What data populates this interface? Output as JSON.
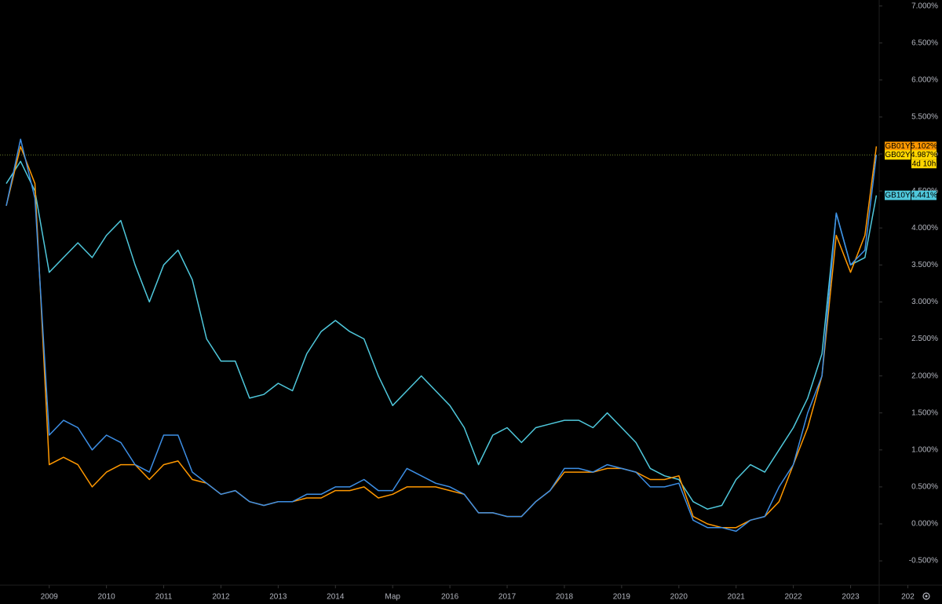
{
  "chart_data": {
    "type": "line",
    "x": [
      2008.25,
      2008.5,
      2008.75,
      2009,
      2009.25,
      2009.5,
      2009.75,
      2010,
      2010.25,
      2010.5,
      2010.75,
      2011,
      2011.25,
      2011.5,
      2011.75,
      2012,
      2012.25,
      2012.5,
      2012.75,
      2013,
      2013.25,
      2013.5,
      2013.75,
      2014,
      2014.25,
      2014.5,
      2014.75,
      2015,
      2015.25,
      2015.5,
      2015.75,
      2016,
      2016.25,
      2016.5,
      2016.75,
      2017,
      2017.25,
      2017.5,
      2017.75,
      2018,
      2018.25,
      2018.5,
      2018.75,
      2019,
      2019.25,
      2019.5,
      2019.75,
      2020,
      2020.25,
      2020.5,
      2020.75,
      2021,
      2021.25,
      2021.5,
      2021.75,
      2022,
      2022.25,
      2022.5,
      2022.75,
      2023,
      2023.25,
      2023.45
    ],
    "series": [
      {
        "name": "GB01Y",
        "color": "#ff9800",
        "label_color": "#ff9800",
        "values": [
          4.3,
          5.1,
          4.6,
          0.8,
          0.9,
          0.8,
          0.5,
          0.7,
          0.8,
          0.8,
          0.6,
          0.8,
          0.85,
          0.6,
          0.55,
          0.4,
          0.45,
          0.3,
          0.25,
          0.3,
          0.3,
          0.35,
          0.35,
          0.45,
          0.45,
          0.5,
          0.35,
          0.4,
          0.5,
          0.5,
          0.5,
          0.45,
          0.4,
          0.15,
          0.15,
          0.1,
          0.1,
          0.3,
          0.45,
          0.7,
          0.7,
          0.7,
          0.75,
          0.75,
          0.7,
          0.6,
          0.6,
          0.65,
          0.1,
          0.0,
          -0.05,
          -0.05,
          0.05,
          0.1,
          0.3,
          0.8,
          1.3,
          2.0,
          3.9,
          3.4,
          3.9,
          5.102
        ],
        "value_labels": [
          null,
          null,
          null,
          null,
          null,
          null,
          null,
          null,
          null,
          null,
          null,
          null,
          null,
          null,
          null,
          null,
          null,
          null,
          null,
          null,
          null,
          null,
          null,
          null,
          null,
          null,
          null,
          null,
          null,
          null,
          null,
          null,
          null,
          null,
          null,
          null,
          null,
          null,
          null,
          null,
          null,
          null,
          null,
          null,
          null,
          null,
          null,
          null,
          null,
          null,
          null,
          null,
          null,
          null,
          null,
          null,
          null,
          null,
          null,
          null,
          null,
          "5.102%"
        ]
      },
      {
        "name": "GB02Y",
        "color": "#3d8fe6",
        "label_color": "#ffd600",
        "values": [
          4.3,
          5.2,
          4.4,
          1.2,
          1.4,
          1.3,
          1.0,
          1.2,
          1.1,
          0.8,
          0.7,
          1.2,
          1.2,
          0.7,
          0.55,
          0.4,
          0.45,
          0.3,
          0.25,
          0.3,
          0.3,
          0.4,
          0.4,
          0.5,
          0.5,
          0.6,
          0.45,
          0.45,
          0.75,
          0.65,
          0.55,
          0.5,
          0.4,
          0.15,
          0.15,
          0.1,
          0.1,
          0.3,
          0.45,
          0.75,
          0.75,
          0.7,
          0.8,
          0.75,
          0.7,
          0.5,
          0.5,
          0.55,
          0.05,
          -0.05,
          -0.05,
          -0.1,
          0.05,
          0.1,
          0.5,
          0.8,
          1.5,
          2.0,
          4.2,
          3.5,
          3.7,
          4.987
        ],
        "value_labels": [
          null,
          null,
          null,
          null,
          null,
          null,
          null,
          null,
          null,
          null,
          null,
          null,
          null,
          null,
          null,
          null,
          null,
          null,
          null,
          null,
          null,
          null,
          null,
          null,
          null,
          null,
          null,
          null,
          null,
          null,
          null,
          null,
          null,
          null,
          null,
          null,
          null,
          null,
          null,
          null,
          null,
          null,
          null,
          null,
          null,
          null,
          null,
          null,
          null,
          null,
          null,
          null,
          null,
          null,
          null,
          null,
          null,
          null,
          null,
          null,
          null,
          "4.987%"
        ],
        "countdown": "4d 10h"
      },
      {
        "name": "GB10Y",
        "color": "#4fc8dc",
        "label_color": "#4fc8dc",
        "values": [
          4.6,
          4.9,
          4.5,
          3.4,
          3.6,
          3.8,
          3.6,
          3.9,
          4.1,
          3.5,
          3.0,
          3.5,
          3.7,
          3.3,
          2.5,
          2.2,
          2.2,
          1.7,
          1.75,
          1.9,
          1.8,
          2.3,
          2.6,
          2.75,
          2.6,
          2.5,
          2.0,
          1.6,
          1.8,
          2.0,
          1.8,
          1.6,
          1.3,
          0.8,
          1.2,
          1.3,
          1.1,
          1.3,
          1.35,
          1.4,
          1.4,
          1.3,
          1.5,
          1.3,
          1.1,
          0.75,
          0.65,
          0.6,
          0.3,
          0.2,
          0.25,
          0.6,
          0.8,
          0.7,
          1.0,
          1.3,
          1.7,
          2.3,
          4.2,
          3.5,
          3.6,
          4.441
        ],
        "value_labels": [
          null,
          null,
          null,
          null,
          null,
          null,
          null,
          null,
          null,
          null,
          null,
          null,
          null,
          null,
          null,
          null,
          null,
          null,
          null,
          null,
          null,
          null,
          null,
          null,
          null,
          null,
          null,
          null,
          null,
          null,
          null,
          null,
          null,
          null,
          null,
          null,
          null,
          null,
          null,
          null,
          null,
          null,
          null,
          null,
          null,
          null,
          null,
          null,
          null,
          null,
          null,
          null,
          null,
          null,
          null,
          null,
          null,
          null,
          null,
          null,
          null,
          "4.441%"
        ]
      }
    ],
    "xlim": [
      2008.14,
      2023.5
    ],
    "xticks": [
      2009,
      2010,
      2011,
      2012,
      2013,
      2014,
      {
        "value": 2015,
        "label": "Мар"
      },
      2016,
      2017,
      2018,
      2019,
      2020,
      2021,
      2022,
      2023,
      {
        "value": 2024,
        "label": "202"
      }
    ],
    "ylim": [
      -0.828,
      7.081
    ],
    "yticks": [
      {
        "value": -0.5,
        "label": "-0.500%"
      },
      {
        "value": 0,
        "label": "0.000%"
      },
      {
        "value": 0.5,
        "label": "0.500%"
      },
      {
        "value": 1,
        "label": "1.000%"
      },
      {
        "value": 1.5,
        "label": "1.500%"
      },
      {
        "value": 2,
        "label": "2.000%"
      },
      {
        "value": 2.5,
        "label": "2.500%"
      },
      {
        "value": 3,
        "label": "3.000%"
      },
      {
        "value": 3.5,
        "label": "3.500%"
      },
      {
        "value": 4,
        "label": "4.000%"
      },
      {
        "value": 4.5,
        "label": "4.500%"
      },
      {
        "value": 5,
        "label": "5.000%"
      },
      {
        "value": 5.5,
        "label": "5.500%"
      },
      {
        "value": 6,
        "label": "6.000%"
      },
      {
        "value": 6.5,
        "label": "6.500%"
      },
      {
        "value": 7,
        "label": "7.000%"
      }
    ],
    "grid": false,
    "price_line_series": 1
  }
}
